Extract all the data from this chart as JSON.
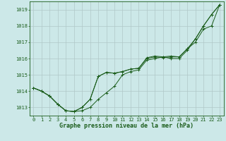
{
  "background_color": "#cce8e8",
  "grid_color": "#b0c8c8",
  "line_color": "#1a5c1a",
  "marker_color": "#1a5c1a",
  "title": "Graphe pression niveau de la mer (hPa)",
  "xlim": [
    -0.5,
    23.5
  ],
  "ylim": [
    1012.5,
    1019.5
  ],
  "yticks": [
    1013,
    1014,
    1015,
    1016,
    1017,
    1018,
    1019
  ],
  "xticks": [
    0,
    1,
    2,
    3,
    4,
    5,
    6,
    7,
    8,
    9,
    10,
    11,
    12,
    13,
    14,
    15,
    16,
    17,
    18,
    19,
    20,
    21,
    22,
    23
  ],
  "series": [
    [
      1014.2,
      1014.0,
      1013.7,
      1013.2,
      1012.8,
      1012.75,
      1012.8,
      1013.0,
      1013.5,
      1013.9,
      1014.3,
      1015.0,
      1015.2,
      1015.3,
      1015.9,
      1016.0,
      1016.1,
      1016.0,
      1016.0,
      1016.5,
      1017.2,
      1018.0,
      1018.7,
      1019.3
    ],
    [
      1014.2,
      1014.0,
      1013.7,
      1013.2,
      1012.8,
      1012.75,
      1013.0,
      1013.5,
      1014.9,
      1015.15,
      1015.1,
      1015.2,
      1015.35,
      1015.4,
      1016.0,
      1016.1,
      1016.05,
      1016.1,
      1016.1,
      1016.6,
      1017.2,
      1018.0,
      1018.7,
      1019.3
    ],
    [
      1014.2,
      1014.0,
      1013.7,
      1013.2,
      1012.8,
      1012.75,
      1013.0,
      1013.5,
      1014.9,
      1015.15,
      1015.1,
      1015.2,
      1015.35,
      1015.4,
      1016.05,
      1016.15,
      1016.1,
      1016.15,
      1016.1,
      1016.6,
      1017.0,
      1017.8,
      1018.0,
      1019.3
    ]
  ],
  "title_fontsize": 6.0,
  "tick_fontsize": 5.0
}
